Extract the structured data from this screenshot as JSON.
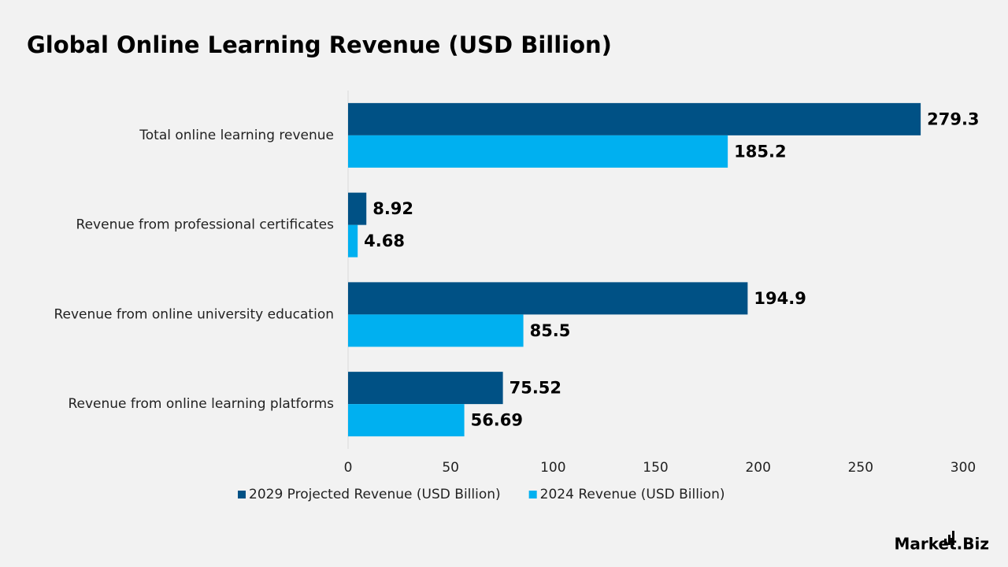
{
  "chart_data": {
    "type": "bar",
    "orientation": "horizontal",
    "title": "Global Online Learning Revenue (USD Billion)",
    "categories": [
      "Total online learning revenue",
      "Revenue from professional certificates",
      "Revenue from online university education",
      "Revenue from online learning platforms"
    ],
    "series": [
      {
        "name": "2029 Projected Revenue (USD Billion)",
        "color": "#005185",
        "values": [
          279.3,
          8.92,
          194.9,
          75.52
        ]
      },
      {
        "name": "2024 Revenue (USD Billion)",
        "color": "#00b0f0",
        "values": [
          185.2,
          4.68,
          85.5,
          56.69
        ]
      }
    ],
    "xlim": [
      0,
      300
    ],
    "xticks": [
      0,
      50,
      100,
      150,
      200,
      250,
      300
    ],
    "grid": false,
    "legend": "bottom"
  },
  "logo": "Market.Biz"
}
